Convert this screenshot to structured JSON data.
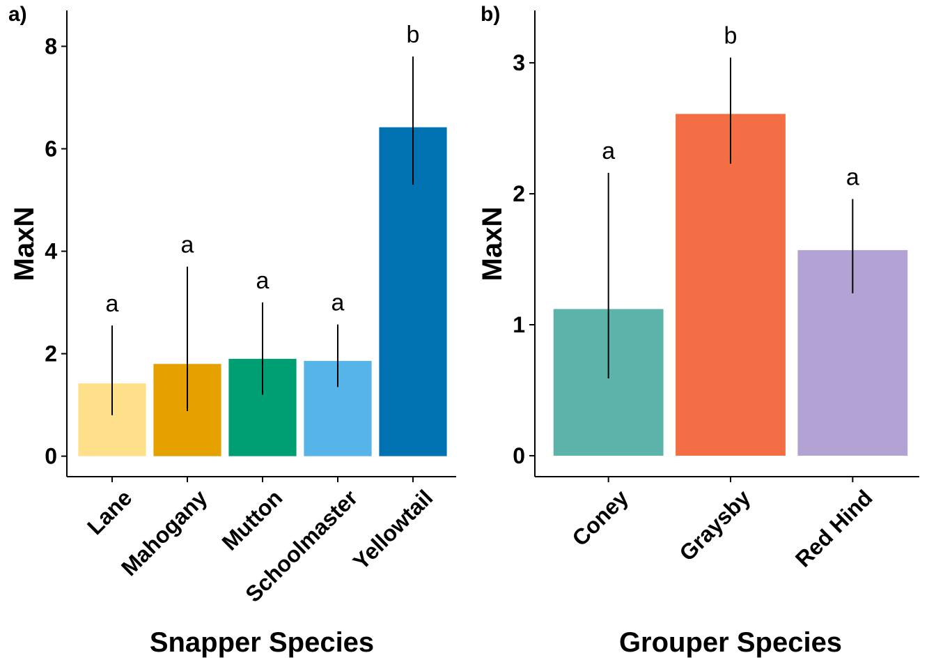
{
  "chart_data": [
    {
      "type": "bar",
      "panel_label": "a)",
      "categories": [
        "Lane",
        "Mahogany",
        "Mutton",
        "Schoolmaster",
        "Yellowtail"
      ],
      "values": [
        1.42,
        1.8,
        1.9,
        1.86,
        6.42
      ],
      "error_low": [
        0.8,
        0.88,
        1.2,
        1.35,
        5.3
      ],
      "error_high": [
        2.55,
        3.7,
        3.0,
        2.57,
        7.8
      ],
      "significance": [
        "a",
        "a",
        "a",
        "a",
        "b"
      ],
      "colors": [
        "#FFE08A",
        "#E5A100",
        "#009E73",
        "#56B4E9",
        "#0072B2"
      ],
      "xlabel": "Snapper Species",
      "ylabel": "MaxN",
      "ylim": [
        -0.4,
        8.7
      ],
      "yticks": [
        0,
        2,
        4,
        6,
        8
      ],
      "grid": false
    },
    {
      "type": "bar",
      "panel_label": "b)",
      "categories": [
        "Coney",
        "Graysby",
        "Red Hind"
      ],
      "values": [
        1.12,
        2.61,
        1.57
      ],
      "error_low": [
        0.59,
        2.23,
        1.24
      ],
      "error_high": [
        2.16,
        3.04,
        1.96
      ],
      "significance": [
        "a",
        "b",
        "a"
      ],
      "colors": [
        "#5BB3A9",
        "#F46E45",
        "#B3A2D4"
      ],
      "xlabel": "Grouper Species",
      "ylabel": "MaxN",
      "ylim": [
        -0.16,
        3.4
      ],
      "yticks": [
        0,
        1,
        2,
        3
      ],
      "grid": false
    }
  ]
}
